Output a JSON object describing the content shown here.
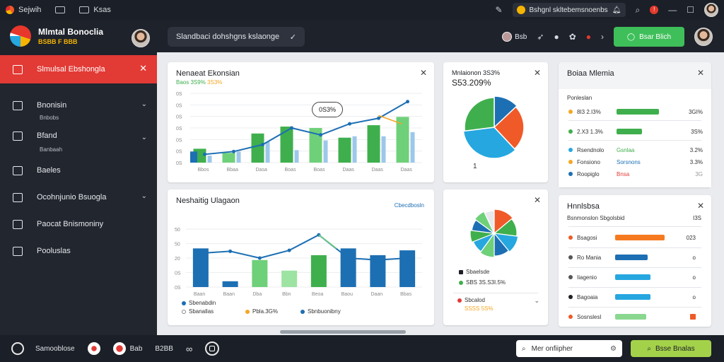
{
  "topbar": {
    "app_name": "Sejwih",
    "item2": "",
    "item3": "Ksas",
    "search_text": "Bshgnl skltebemsnoenbs",
    "notif_count": "!"
  },
  "header": {
    "brand_title": "Mlmtal Bonoclia",
    "brand_sub": "BSBB F BBB",
    "search_text": "Slandbaci dohshgns kslaonge",
    "user_label": "Bsb",
    "action_button": "Bsar Blich"
  },
  "sidebar": {
    "items": [
      {
        "label": "Slmulsal Ebshongla",
        "active": true
      },
      {
        "label": "Bnonisin",
        "sub": "Bnbobs"
      },
      {
        "label": "Bfand",
        "sub": "Banbaah"
      },
      {
        "label": "Baeles"
      },
      {
        "label": "Ocohnjunio Bsuogla"
      },
      {
        "label": "Paocat Bnismoniny"
      },
      {
        "label": "Pooluslas"
      }
    ]
  },
  "cards": {
    "top_chart": {
      "title": "Nenaeat Ekonsian",
      "sub_a": "Baos 3S9%",
      "sub_b": "3S3%",
      "bubble": "0S3%"
    },
    "pie_top": {
      "title": "Mnlaionon 3S3%",
      "value": "S53.209%",
      "footnote": "1"
    },
    "list_top": {
      "title": "Boiaa Mlemia",
      "heading": "Ponleslan",
      "rows": [
        {
          "label": "8I3 2.I3%",
          "val": "3GI%"
        },
        {
          "label": "2.X3 1.3%",
          "val": "3S%"
        },
        {
          "label": "Rsendnolo",
          "mid": "Gsnlaa",
          "val": "3.2%"
        },
        {
          "label": "Fonsiono",
          "mid": "Sorsnons",
          "val": "3.3%"
        },
        {
          "label": "Roopiglo",
          "mid": "Bnsa",
          "val": "3G"
        }
      ]
    },
    "bottom_chart": {
      "title": "Neshaitig Ulagaon",
      "badge": "Cbecdbosln",
      "legend": [
        {
          "label": "Sbenabdin",
          "color": "#1d6fb3"
        },
        {
          "label": "Sbanallas",
          "color": "#e7eaee"
        },
        {
          "label": "Pbla.3G%",
          "color": "#f5a623"
        },
        {
          "label": "Sbnbuonibny",
          "color": "#1d6fb3"
        }
      ]
    },
    "pie_bottom": {
      "legend": [
        {
          "label": "Sbaelsde",
          "color": "#1d1f24"
        },
        {
          "label": "SBS 3S.S3I.5%",
          "color": "#3faf4d"
        }
      ],
      "select_label": "Sbcalod",
      "select_sub": "SSSS 5S%"
    },
    "list_bottom": {
      "title": "Hnnlsbsa",
      "heading": "Bsnmonslon Sbgolsbid",
      "heading_val": "I3S",
      "rows": [
        {
          "label": "Bsagosi",
          "val": "023"
        },
        {
          "label": "Ro Mania",
          "val": "o"
        },
        {
          "label": "Iiagenio",
          "val": "o"
        },
        {
          "label": "Bagoaia",
          "val": "o"
        },
        {
          "label": "Sosnslesl",
          "val": ""
        }
      ]
    }
  },
  "chart_data": [
    {
      "type": "bar",
      "title": "Nenaeat Ekonsian",
      "categories": [
        "Bbos",
        "Bbaa",
        "Dasa",
        "Boas",
        "Boas",
        "Daas",
        "Daas",
        "Daas"
      ],
      "series": [
        {
          "values": [
            10,
            7,
            21,
            26,
            25,
            18,
            27,
            33
          ]
        },
        {
          "values": [
            5,
            8,
            15,
            9,
            16,
            19,
            19,
            22
          ]
        }
      ],
      "line": [
        6,
        8,
        13,
        25,
        20,
        28,
        32,
        44
      ],
      "ylabels": [
        "0S",
        "0S",
        "0S",
        "0S",
        "0S",
        "0S",
        "0S"
      ]
    },
    {
      "type": "pie",
      "values": [
        13,
        25,
        35,
        27
      ],
      "colors": [
        "#1d6fb3",
        "#f05a28",
        "#26a7e0",
        "#3faf4d"
      ]
    },
    {
      "type": "bar",
      "title": "Neshaitig Ulagaon",
      "categories": [
        "Baan",
        "Baan",
        "Dba",
        "Bbn",
        "Beoa",
        "Baou",
        "Daan",
        "Bbas"
      ],
      "values": [
        40,
        6,
        28,
        17,
        33,
        40,
        33,
        38
      ],
      "colors": [
        "#1d6fb3",
        "#1d6fb3",
        "#6fd07a",
        "#9de3a2",
        "#3faf4d",
        "#1d6fb3",
        "#1d6fb3",
        "#1d6fb3"
      ],
      "line": [
        35,
        37,
        30,
        38,
        54,
        30,
        28,
        30
      ],
      "ylabels": [
        "50",
        "50",
        "20",
        "0S",
        "0S"
      ]
    },
    {
      "type": "pie",
      "values": [
        14,
        13,
        12,
        11,
        10,
        9,
        8,
        8,
        8,
        7
      ],
      "colors": [
        "#f05a28",
        "#3faf4d",
        "#26a7e0",
        "#1d6fb3",
        "#6fd07a",
        "#26a7e0",
        "#3faf4d",
        "#1d6fb3",
        "#6fd07a",
        "#e7e9ec"
      ]
    }
  ],
  "bottombar": {
    "item1": "Samooblose",
    "item2": "Bab",
    "item3": "B2BB",
    "search_placeholder": "Mer onfiipher",
    "action": "Bsse Bnalas"
  }
}
